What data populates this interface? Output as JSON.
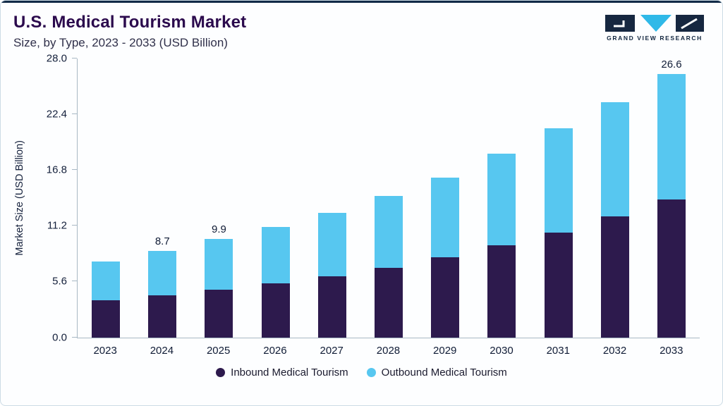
{
  "header": {
    "title": "U.S. Medical Tourism Market",
    "subtitle": "Size, by Type, 2023 - 2033 (USD Billion)",
    "logo_text": "GRAND VIEW RESEARCH"
  },
  "colors": {
    "inbound_purple": "#2d1a4d",
    "outbound_blue": "#57c7f0",
    "title_purple": "#2b0a4d",
    "top_rule_navy": "#112a47",
    "frame_border": "#ccdbe5",
    "logo_cyan": "#2fb9e8",
    "logo_navy": "#162740"
  },
  "chart_data": {
    "type": "bar",
    "stacked": true,
    "title": "U.S. Medical Tourism Market Size, by Type, 2023 - 2033 (USD Billion)",
    "categories": [
      "2023",
      "2024",
      "2025",
      "2026",
      "2027",
      "2028",
      "2029",
      "2030",
      "2031",
      "2032",
      "2033"
    ],
    "series": [
      {
        "name": "Inbound Medical Tourism",
        "color": "#2d1a4d",
        "values": [
          3.7,
          4.2,
          4.8,
          5.4,
          6.1,
          7.0,
          8.0,
          9.2,
          10.5,
          12.1,
          13.9
        ]
      },
      {
        "name": "Outbound Medical Tourism",
        "color": "#57c7f0",
        "values": [
          3.9,
          4.5,
          5.1,
          5.7,
          6.4,
          7.2,
          8.0,
          9.2,
          10.5,
          11.5,
          12.7
        ]
      }
    ],
    "totals_shown": [
      "",
      "8.7",
      "9.9",
      "",
      "",
      "",
      "",
      "",
      "",
      "",
      "26.6"
    ],
    "xlabel": "",
    "ylabel": "Market Size (USD Billion)",
    "yticks": [
      0.0,
      5.6,
      11.2,
      16.8,
      22.4,
      28.0
    ],
    "ylim": [
      0,
      28
    ],
    "grid": false,
    "legend_position": "bottom"
  }
}
